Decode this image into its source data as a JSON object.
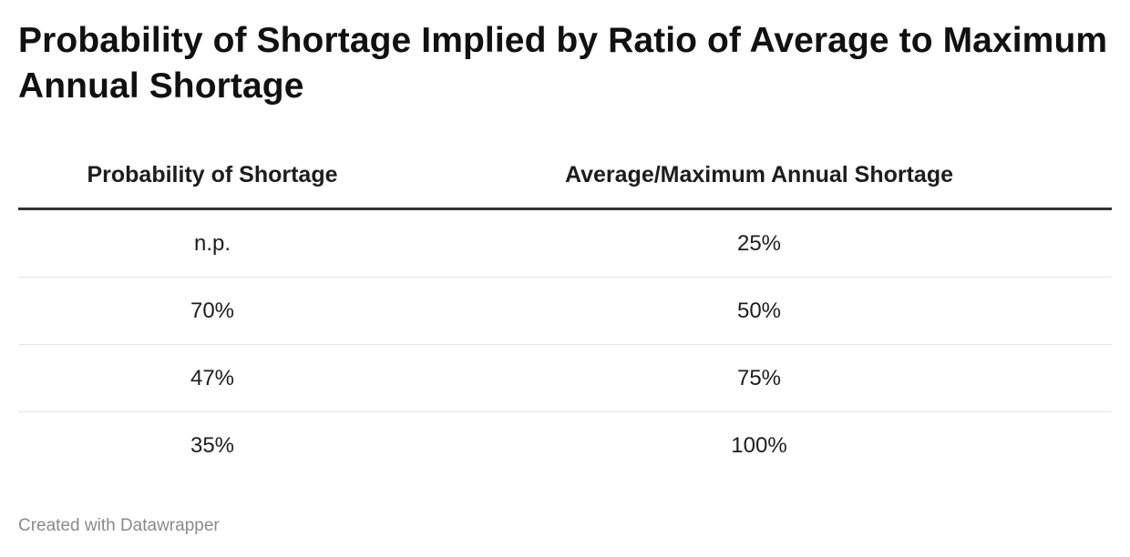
{
  "chart_data": {
    "type": "table",
    "title": "Probability of Shortage Implied by Ratio of Average to Maximum Annual Shortage",
    "columns": [
      "Probability of Shortage",
      "Average/Maximum Annual Shortage"
    ],
    "rows": [
      [
        "n.p.",
        "25%"
      ],
      [
        "70%",
        "50%"
      ],
      [
        "47%",
        "75%"
      ],
      [
        "35%",
        "100%"
      ]
    ]
  },
  "footer": {
    "credit": "Created with Datawrapper"
  }
}
